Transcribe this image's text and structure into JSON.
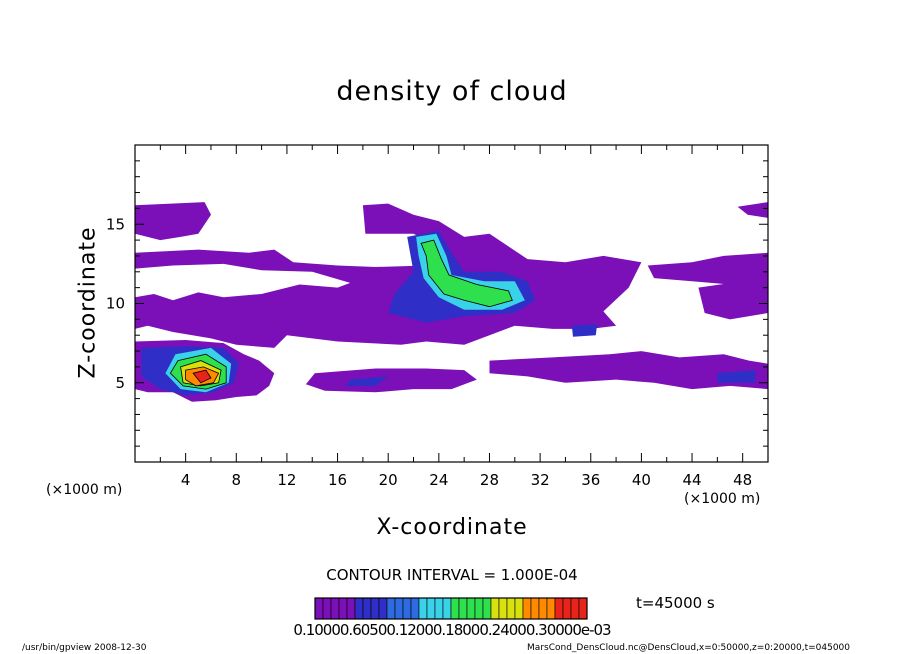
{
  "chart_data": {
    "type": "heatmap",
    "title": "density of cloud",
    "xlabel": "X-coordinate",
    "ylabel": "Z-coordinate",
    "x_unit_left": "(×1000 m)",
    "x_unit_right": "(×1000 m)",
    "xlim": [
      0,
      50
    ],
    "ylim": [
      0,
      20
    ],
    "x_ticks": [
      4,
      8,
      12,
      16,
      20,
      24,
      28,
      32,
      36,
      40,
      44,
      48
    ],
    "y_ticks": [
      5,
      10,
      15
    ],
    "contour_interval": "CONTOUR INTERVAL = 1.000E-04",
    "time_label": "t=45000 s",
    "colorbar_labels": "0.10000.60500.12000.18000.24000.30000e-03",
    "colors": {
      "purple": "#7b0fb8",
      "deep_blue": "#2f2fc8",
      "blue": "#2f6be0",
      "cyan": "#39d2e8",
      "green": "#2edf4e",
      "yellow": "#d8e010",
      "orange": "#ff8a00",
      "red": "#e8241a"
    },
    "regions": [
      {
        "level": 1,
        "polygon": [
          [
            0,
            16.2
          ],
          [
            5.5,
            16.4
          ],
          [
            6,
            15.6
          ],
          [
            5,
            14.4
          ],
          [
            3.6,
            14.2
          ],
          [
            2,
            14
          ],
          [
            0,
            14.4
          ]
        ]
      },
      {
        "level": 1,
        "polygon": [
          [
            0,
            13.2
          ],
          [
            5,
            13.4
          ],
          [
            9,
            13.2
          ],
          [
            11,
            13.4
          ],
          [
            12.5,
            12.6
          ],
          [
            16,
            12.4
          ],
          [
            19,
            12.3
          ],
          [
            23,
            12.4
          ],
          [
            24,
            13.6
          ],
          [
            22,
            14.4
          ],
          [
            18.2,
            14.4
          ],
          [
            18,
            16.2
          ],
          [
            20,
            16.3
          ],
          [
            22,
            15.6
          ],
          [
            24,
            15.2
          ],
          [
            26,
            14.2
          ],
          [
            28,
            14.4
          ],
          [
            31,
            12.8
          ],
          [
            34,
            12.6
          ],
          [
            37,
            13
          ],
          [
            40,
            12.6
          ],
          [
            39,
            11
          ],
          [
            37,
            9.5
          ],
          [
            38,
            8.6
          ],
          [
            36,
            8.4
          ],
          [
            33,
            8.4
          ],
          [
            30,
            8.6
          ],
          [
            28,
            8
          ],
          [
            26,
            7.4
          ],
          [
            23,
            7.6
          ],
          [
            21,
            7.4
          ],
          [
            16,
            7.6
          ],
          [
            14,
            7.8
          ],
          [
            12,
            8
          ],
          [
            11,
            7.2
          ],
          [
            8,
            7.4
          ],
          [
            6,
            7.8
          ],
          [
            3,
            8.2
          ],
          [
            1,
            8.6
          ],
          [
            0,
            8.4
          ],
          [
            0,
            10.4
          ],
          [
            1.5,
            10.6
          ],
          [
            3,
            10.2
          ],
          [
            5,
            10.7
          ],
          [
            7,
            10.4
          ],
          [
            10,
            10.6
          ],
          [
            13,
            11.2
          ],
          [
            16,
            11
          ],
          [
            17,
            11.3
          ],
          [
            14,
            12
          ],
          [
            10,
            12.1
          ],
          [
            7,
            12.5
          ],
          [
            3,
            12.4
          ],
          [
            0,
            12.2
          ]
        ]
      },
      {
        "level": 1,
        "polygon": [
          [
            0,
            7.6
          ],
          [
            4,
            7.7
          ],
          [
            7,
            7.5
          ],
          [
            8.6,
            6.8
          ],
          [
            9.8,
            6.4
          ],
          [
            11,
            5.6
          ],
          [
            10.6,
            4.8
          ],
          [
            9.6,
            4.2
          ],
          [
            8,
            4.1
          ],
          [
            6.4,
            3.9
          ],
          [
            4.5,
            3.8
          ],
          [
            3,
            4.4
          ],
          [
            1,
            4.4
          ],
          [
            0,
            4.6
          ]
        ]
      },
      {
        "level": 1,
        "polygon": [
          [
            14.2,
            5.6
          ],
          [
            19,
            5.9
          ],
          [
            23,
            5.9
          ],
          [
            26,
            5.8
          ],
          [
            27,
            5.2
          ],
          [
            25,
            4.6
          ],
          [
            22,
            4.6
          ],
          [
            19,
            4.4
          ],
          [
            15,
            4.5
          ],
          [
            13.5,
            4.9
          ]
        ]
      },
      {
        "level": 1,
        "polygon": [
          [
            28,
            6.4
          ],
          [
            33,
            6.6
          ],
          [
            37.5,
            6.8
          ],
          [
            40,
            7
          ],
          [
            43,
            6.6
          ],
          [
            46.5,
            6.8
          ],
          [
            48.5,
            6.4
          ],
          [
            50,
            6.2
          ],
          [
            50,
            4.6
          ],
          [
            47,
            4.8
          ],
          [
            44,
            4.6
          ],
          [
            41,
            5
          ],
          [
            38,
            5.2
          ],
          [
            34,
            5
          ],
          [
            31,
            5.4
          ],
          [
            28,
            5.6
          ]
        ]
      },
      {
        "level": 1,
        "polygon": [
          [
            40.5,
            12.4
          ],
          [
            44,
            12.6
          ],
          [
            46.5,
            13
          ],
          [
            50,
            13.2
          ],
          [
            50,
            11
          ],
          [
            47,
            11.2
          ],
          [
            44,
            11.4
          ],
          [
            41,
            11.6
          ]
        ]
      },
      {
        "level": 1,
        "polygon": [
          [
            44.5,
            11
          ],
          [
            48,
            11.4
          ],
          [
            50,
            11.8
          ],
          [
            50,
            9.4
          ],
          [
            47,
            9
          ],
          [
            45,
            9.4
          ]
        ]
      },
      {
        "level": 1,
        "polygon": [
          [
            47.6,
            16.1
          ],
          [
            50,
            16.4
          ],
          [
            50,
            15.4
          ],
          [
            48.4,
            15.6
          ]
        ]
      },
      {
        "level": 2,
        "polygon": [
          [
            21.5,
            14.2
          ],
          [
            24,
            14.6
          ],
          [
            25,
            13.2
          ],
          [
            26,
            12
          ],
          [
            29,
            12
          ],
          [
            31,
            11.4
          ],
          [
            31.6,
            10.2
          ],
          [
            30,
            9.4
          ],
          [
            26,
            9.2
          ],
          [
            23,
            8.8
          ],
          [
            20,
            9.4
          ],
          [
            20.5,
            10.6
          ],
          [
            22,
            12
          ]
        ]
      },
      {
        "level": 2,
        "polygon": [
          [
            0.5,
            7.2
          ],
          [
            4,
            7.3
          ],
          [
            7,
            7.2
          ],
          [
            8.2,
            6.2
          ],
          [
            7.8,
            5
          ],
          [
            6.2,
            4.4
          ],
          [
            4,
            4.2
          ],
          [
            2,
            4.6
          ],
          [
            0.5,
            5.4
          ]
        ]
      },
      {
        "level": 2,
        "polygon": [
          [
            34.5,
            8.6
          ],
          [
            36.5,
            8.7
          ],
          [
            36.4,
            8
          ],
          [
            34.6,
            7.9
          ]
        ]
      },
      {
        "level": 2,
        "polygon": [
          [
            17,
            5.2
          ],
          [
            20,
            5.4
          ],
          [
            19,
            4.8
          ],
          [
            16.6,
            4.8
          ]
        ]
      },
      {
        "level": 2,
        "polygon": [
          [
            46,
            5.6
          ],
          [
            49,
            5.8
          ],
          [
            49,
            5
          ],
          [
            46,
            5
          ]
        ]
      },
      {
        "level": 3,
        "polygon": [
          [
            22.2,
            14.2
          ],
          [
            23.8,
            14.4
          ],
          [
            24.6,
            13
          ],
          [
            25,
            11.8
          ],
          [
            27.6,
            11.4
          ],
          [
            30,
            11.4
          ],
          [
            30.8,
            10.2
          ],
          [
            29,
            9.6
          ],
          [
            26,
            9.6
          ],
          [
            24,
            10.4
          ],
          [
            22.8,
            11.6
          ],
          [
            22.4,
            13
          ]
        ]
      },
      {
        "level": 3,
        "polygon": [
          [
            3.2,
            6.8
          ],
          [
            6,
            7.2
          ],
          [
            7.6,
            6.2
          ],
          [
            7.4,
            5
          ],
          [
            5.6,
            4.4
          ],
          [
            3.6,
            4.6
          ],
          [
            2.4,
            5.6
          ]
        ]
      },
      {
        "level": 4,
        "polygon": [
          [
            22.6,
            13.8
          ],
          [
            23.6,
            14
          ],
          [
            24.2,
            12.8
          ],
          [
            24.8,
            11.8
          ],
          [
            27,
            11.2
          ],
          [
            29.5,
            10.8
          ],
          [
            29.8,
            10.2
          ],
          [
            28,
            9.8
          ],
          [
            26,
            10.2
          ],
          [
            24.4,
            10.6
          ],
          [
            23.2,
            11.8
          ],
          [
            23,
            13
          ]
        ]
      },
      {
        "level": 4,
        "polygon": [
          [
            3.4,
            6.4
          ],
          [
            5.6,
            6.8
          ],
          [
            7.2,
            6
          ],
          [
            7.2,
            5
          ],
          [
            5.6,
            4.6
          ],
          [
            3.8,
            4.8
          ],
          [
            2.8,
            5.6
          ]
        ]
      },
      {
        "level": 5,
        "polygon": [
          [
            3.6,
            6
          ],
          [
            5.2,
            6.4
          ],
          [
            6.8,
            5.8
          ],
          [
            6.6,
            5
          ],
          [
            5.2,
            4.8
          ],
          [
            3.8,
            5
          ]
        ]
      },
      {
        "level": 6,
        "polygon": [
          [
            4,
            5.8
          ],
          [
            5.4,
            6
          ],
          [
            6.6,
            5.6
          ],
          [
            6.2,
            5
          ],
          [
            4.8,
            4.8
          ],
          [
            4,
            5.2
          ]
        ]
      },
      {
        "level": 7,
        "polygon": [
          [
            4.6,
            5.6
          ],
          [
            5.6,
            5.8
          ],
          [
            6,
            5.3
          ],
          [
            5.2,
            5
          ]
        ]
      }
    ]
  },
  "footer_left": "/usr/bin/gpview   2008-12-30",
  "footer_right": "MarsCond_DensCloud.nc@DensCloud,x=0:50000,z=0:20000,t=045000"
}
